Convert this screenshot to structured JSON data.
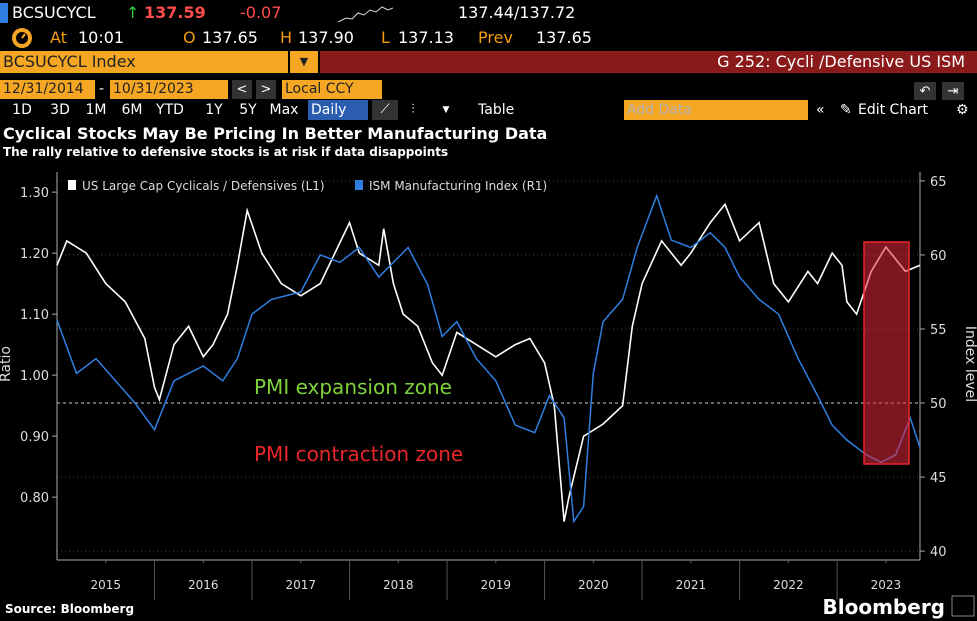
{
  "header": {
    "ticker": "BCSUCYCL",
    "price": "137.59",
    "change": "-0.07",
    "bid_ask": "137.44/137.72",
    "time_label": "At",
    "time": "10:01",
    "open_label": "O",
    "open": "137.65",
    "high_label": "H",
    "high": "137.90",
    "low_label": "L",
    "low": "137.13",
    "prev_label": "Prev",
    "prev": "137.65",
    "security": "BCSUCYCL Index",
    "chart_name": "G 252: Cycli /Defensive US ISM",
    "start_date": "12/31/2014",
    "date_sep": "-",
    "end_date": "10/31/2023",
    "currency": "Local CCY",
    "periods": [
      "1D",
      "3D",
      "1M",
      "6M",
      "YTD",
      "1Y",
      "5Y",
      "Max"
    ],
    "frequency": "Daily",
    "table": "Table",
    "add_data": "Add Data",
    "edit_chart": "Edit Chart"
  },
  "chart_data": {
    "type": "line",
    "title": "Cyclical Stocks May Be Pricing In Better Manufacturing Data",
    "subtitle": "The rally relative to defensive stocks is at risk if data disappoints",
    "ylabel": "Ratio",
    "y2label": "Index level",
    "annotations": [
      "PMI expansion zone",
      "PMI contraction zone"
    ],
    "reference_line": 50,
    "xlim": [
      2015.0,
      2023.85
    ],
    "xticks": [
      {
        "value": 2015.5,
        "label": "2015"
      },
      {
        "value": 2016.5,
        "label": "2016"
      },
      {
        "value": 2017.5,
        "label": "2017"
      },
      {
        "value": 2018.5,
        "label": "2018"
      },
      {
        "value": 2019.5,
        "label": "2019"
      },
      {
        "value": 2020.5,
        "label": "2020"
      },
      {
        "value": 2021.5,
        "label": "2021"
      },
      {
        "value": 2022.5,
        "label": "2022"
      },
      {
        "value": 2023.5,
        "label": "2023"
      }
    ],
    "ylim": [
      0.697,
      1.333
    ],
    "yticks": [
      {
        "value": 0.8,
        "label": "0.80"
      },
      {
        "value": 0.9,
        "label": "0.90"
      },
      {
        "value": 1.0,
        "label": "1.00"
      },
      {
        "value": 1.1,
        "label": "1.10"
      },
      {
        "value": 1.2,
        "label": "1.20"
      },
      {
        "value": 1.3,
        "label": "1.30"
      }
    ],
    "y2lim": [
      39.4,
      65.6
    ],
    "y2ticks": [
      40,
      45,
      50,
      55,
      60,
      65
    ],
    "series": [
      {
        "name": "US Large Cap Cyclicals / Defensives (L1)",
        "color": "#ffffff",
        "x": [
          2015.0,
          2015.1,
          2015.3,
          2015.5,
          2015.7,
          2015.9,
          2016.0,
          2016.05,
          2016.2,
          2016.35,
          2016.5,
          2016.6,
          2016.75,
          2016.85,
          2016.95,
          2017.1,
          2017.3,
          2017.5,
          2017.7,
          2017.85,
          2018.0,
          2018.1,
          2018.3,
          2018.35,
          2018.45,
          2018.55,
          2018.7,
          2018.85,
          2018.95,
          2019.1,
          2019.3,
          2019.5,
          2019.7,
          2019.85,
          2020.0,
          2020.1,
          2020.2,
          2020.25,
          2020.4,
          2020.6,
          2020.8,
          2020.9,
          2021.0,
          2021.2,
          2021.4,
          2021.5,
          2021.7,
          2021.85,
          2022.0,
          2022.2,
          2022.35,
          2022.5,
          2022.7,
          2022.8,
          2022.95,
          2023.05,
          2023.1,
          2023.2,
          2023.35,
          2023.5,
          2023.7,
          2023.85
        ],
        "values": [
          1.18,
          1.22,
          1.2,
          1.15,
          1.12,
          1.06,
          0.98,
          0.96,
          1.05,
          1.08,
          1.03,
          1.05,
          1.1,
          1.18,
          1.27,
          1.2,
          1.15,
          1.13,
          1.15,
          1.2,
          1.25,
          1.2,
          1.18,
          1.24,
          1.15,
          1.1,
          1.08,
          1.02,
          1.0,
          1.07,
          1.05,
          1.03,
          1.05,
          1.06,
          1.02,
          0.95,
          0.76,
          0.8,
          0.9,
          0.92,
          0.95,
          1.08,
          1.15,
          1.22,
          1.18,
          1.2,
          1.25,
          1.28,
          1.22,
          1.25,
          1.15,
          1.12,
          1.17,
          1.15,
          1.2,
          1.18,
          1.12,
          1.1,
          1.17,
          1.21,
          1.17,
          1.18
        ]
      },
      {
        "name": "ISM Manufacturing Index (R1)",
        "color": "#2f7fe0",
        "axis": "y2",
        "x": [
          2015.0,
          2015.2,
          2015.4,
          2015.6,
          2015.8,
          2016.0,
          2016.2,
          2016.5,
          2016.7,
          2016.85,
          2017.0,
          2017.2,
          2017.5,
          2017.7,
          2017.9,
          2018.1,
          2018.3,
          2018.6,
          2018.8,
          2018.95,
          2019.1,
          2019.3,
          2019.5,
          2019.7,
          2019.9,
          2020.05,
          2020.2,
          2020.3,
          2020.4,
          2020.5,
          2020.6,
          2020.8,
          2020.95,
          2021.15,
          2021.3,
          2021.5,
          2021.7,
          2021.85,
          2022.0,
          2022.2,
          2022.4,
          2022.6,
          2022.8,
          2022.95,
          2023.1,
          2023.3,
          2023.45,
          2023.6,
          2023.75,
          2023.85
        ],
        "values": [
          55.6,
          52,
          53,
          51.5,
          50,
          48.2,
          51.5,
          52.5,
          51.5,
          53,
          56,
          57,
          57.5,
          60,
          59.5,
          60.5,
          58.5,
          60.5,
          58,
          54.5,
          55.5,
          53,
          51.5,
          48.5,
          48,
          50.5,
          49,
          42,
          43,
          52,
          55.5,
          57,
          60.5,
          64,
          61,
          60.5,
          61.5,
          60.5,
          58.5,
          57,
          56,
          53,
          50.5,
          48.5,
          47.5,
          46.5,
          46,
          46.5,
          49,
          47
        ]
      }
    ]
  },
  "footer": {
    "source": "Source: Bloomberg",
    "brand": "Bloomberg"
  }
}
